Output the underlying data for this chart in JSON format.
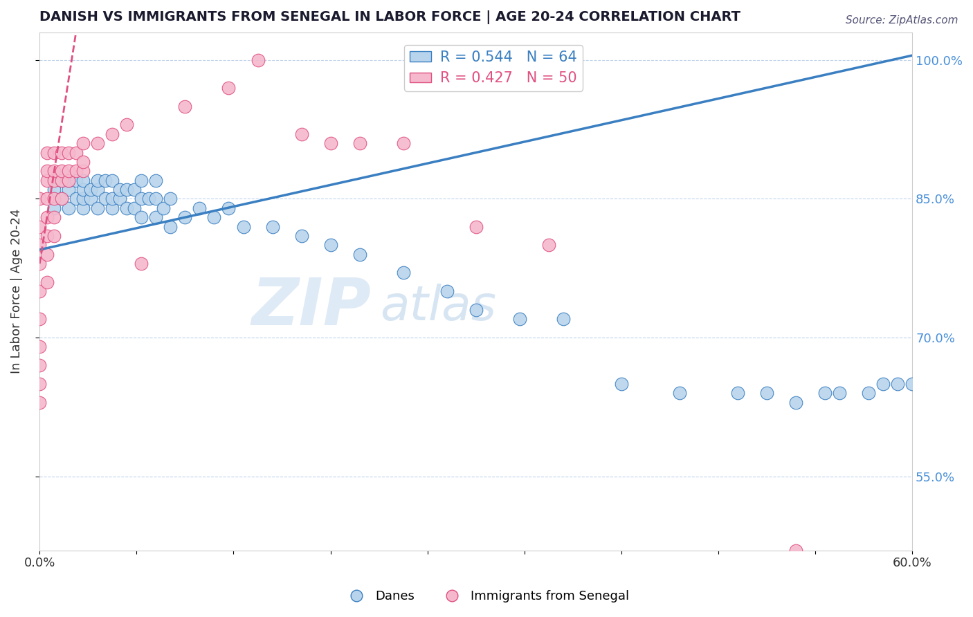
{
  "title": "DANISH VS IMMIGRANTS FROM SENEGAL IN LABOR FORCE | AGE 20-24 CORRELATION CHART",
  "source": "Source: ZipAtlas.com",
  "ylabel": "In Labor Force | Age 20-24",
  "xlim": [
    0.0,
    0.6
  ],
  "ylim": [
    0.47,
    1.03
  ],
  "blue_R": 0.544,
  "blue_N": 64,
  "pink_R": 0.427,
  "pink_N": 50,
  "blue_color": "#b8d4ec",
  "pink_color": "#f5b8cc",
  "blue_line_color": "#3a7fc1",
  "pink_line_color": "#e05080",
  "watermark_zip": "ZIP",
  "watermark_atlas": "atlas",
  "danes_x": [
    0.01,
    0.01,
    0.015,
    0.015,
    0.02,
    0.02,
    0.02,
    0.025,
    0.025,
    0.03,
    0.03,
    0.03,
    0.03,
    0.035,
    0.035,
    0.04,
    0.04,
    0.04,
    0.045,
    0.045,
    0.05,
    0.05,
    0.05,
    0.055,
    0.055,
    0.06,
    0.06,
    0.065,
    0.065,
    0.07,
    0.07,
    0.07,
    0.075,
    0.08,
    0.08,
    0.08,
    0.085,
    0.09,
    0.09,
    0.1,
    0.11,
    0.12,
    0.13,
    0.14,
    0.16,
    0.18,
    0.2,
    0.22,
    0.25,
    0.28,
    0.3,
    0.33,
    0.36,
    0.4,
    0.44,
    0.48,
    0.5,
    0.52,
    0.54,
    0.55,
    0.57,
    0.58,
    0.59,
    0.6
  ],
  "danes_y": [
    0.84,
    0.86,
    0.85,
    0.87,
    0.84,
    0.86,
    0.87,
    0.85,
    0.87,
    0.84,
    0.85,
    0.86,
    0.87,
    0.85,
    0.86,
    0.84,
    0.86,
    0.87,
    0.85,
    0.87,
    0.84,
    0.85,
    0.87,
    0.85,
    0.86,
    0.84,
    0.86,
    0.84,
    0.86,
    0.83,
    0.85,
    0.87,
    0.85,
    0.83,
    0.85,
    0.87,
    0.84,
    0.82,
    0.85,
    0.83,
    0.84,
    0.83,
    0.84,
    0.82,
    0.82,
    0.81,
    0.8,
    0.79,
    0.77,
    0.75,
    0.73,
    0.72,
    0.72,
    0.65,
    0.64,
    0.64,
    0.64,
    0.63,
    0.64,
    0.64,
    0.64,
    0.65,
    0.65,
    0.65
  ],
  "senegal_x": [
    0.0,
    0.0,
    0.0,
    0.0,
    0.0,
    0.0,
    0.0,
    0.0,
    0.0,
    0.0,
    0.005,
    0.005,
    0.005,
    0.005,
    0.005,
    0.005,
    0.005,
    0.005,
    0.01,
    0.01,
    0.01,
    0.01,
    0.01,
    0.01,
    0.015,
    0.015,
    0.015,
    0.015,
    0.02,
    0.02,
    0.02,
    0.025,
    0.025,
    0.03,
    0.03,
    0.03,
    0.04,
    0.05,
    0.06,
    0.07,
    0.1,
    0.13,
    0.15,
    0.18,
    0.2,
    0.22,
    0.25,
    0.3,
    0.35,
    0.52
  ],
  "senegal_y": [
    0.63,
    0.65,
    0.67,
    0.69,
    0.72,
    0.75,
    0.78,
    0.8,
    0.82,
    0.85,
    0.76,
    0.79,
    0.81,
    0.83,
    0.85,
    0.87,
    0.88,
    0.9,
    0.81,
    0.83,
    0.85,
    0.87,
    0.88,
    0.9,
    0.85,
    0.87,
    0.88,
    0.9,
    0.87,
    0.88,
    0.9,
    0.88,
    0.9,
    0.88,
    0.89,
    0.91,
    0.91,
    0.92,
    0.93,
    0.78,
    0.95,
    0.97,
    1.0,
    0.92,
    0.91,
    0.91,
    0.91,
    0.82,
    0.8,
    0.47
  ]
}
